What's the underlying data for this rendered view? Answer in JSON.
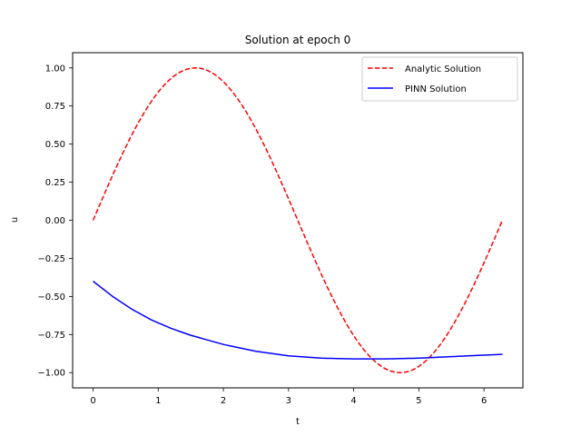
{
  "chart_data": {
    "type": "line",
    "title": "Solution at epoch 0",
    "xlabel": "t",
    "ylabel": "u",
    "xlim": [
      -0.3142,
      6.5974
    ],
    "ylim": [
      -1.1,
      1.1
    ],
    "xticks": [
      0,
      1,
      2,
      3,
      4,
      5,
      6
    ],
    "yticks": [
      -1.0,
      -0.75,
      -0.5,
      -0.25,
      0.0,
      0.25,
      0.5,
      0.75,
      1.0
    ],
    "ytick_labels": [
      "−1.00",
      "−0.75",
      "−0.50",
      "−0.25",
      "0.00",
      "0.25",
      "0.50",
      "0.75",
      "1.00"
    ],
    "grid": false,
    "legend_position": "top-right",
    "series": [
      {
        "name": "Analytic Solution",
        "color": "#ff0000",
        "style": "dashed",
        "x": [
          0,
          0.3,
          0.6,
          0.9,
          1.2,
          1.5708,
          1.9,
          2.2,
          2.5,
          2.8,
          3.1416,
          3.4,
          3.7,
          4.0,
          4.3,
          4.7124,
          5.0,
          5.3,
          5.6,
          5.9,
          6.2832
        ],
        "y": [
          0.0,
          0.296,
          0.565,
          0.783,
          0.932,
          1.0,
          0.946,
          0.808,
          0.598,
          0.335,
          0.0,
          -0.256,
          -0.53,
          -0.757,
          -0.916,
          -1.0,
          -0.959,
          -0.832,
          -0.631,
          -0.374,
          0.0
        ]
      },
      {
        "name": "PINN Solution",
        "color": "#0000ff",
        "style": "solid",
        "x": [
          0,
          0.3,
          0.6,
          0.9,
          1.2,
          1.5,
          2.0,
          2.5,
          3.0,
          3.5,
          4.0,
          4.5,
          5.0,
          5.5,
          6.0,
          6.2832
        ],
        "y": [
          -0.4,
          -0.5,
          -0.585,
          -0.655,
          -0.71,
          -0.755,
          -0.815,
          -0.86,
          -0.89,
          -0.905,
          -0.91,
          -0.91,
          -0.905,
          -0.895,
          -0.885,
          -0.88
        ]
      }
    ]
  }
}
